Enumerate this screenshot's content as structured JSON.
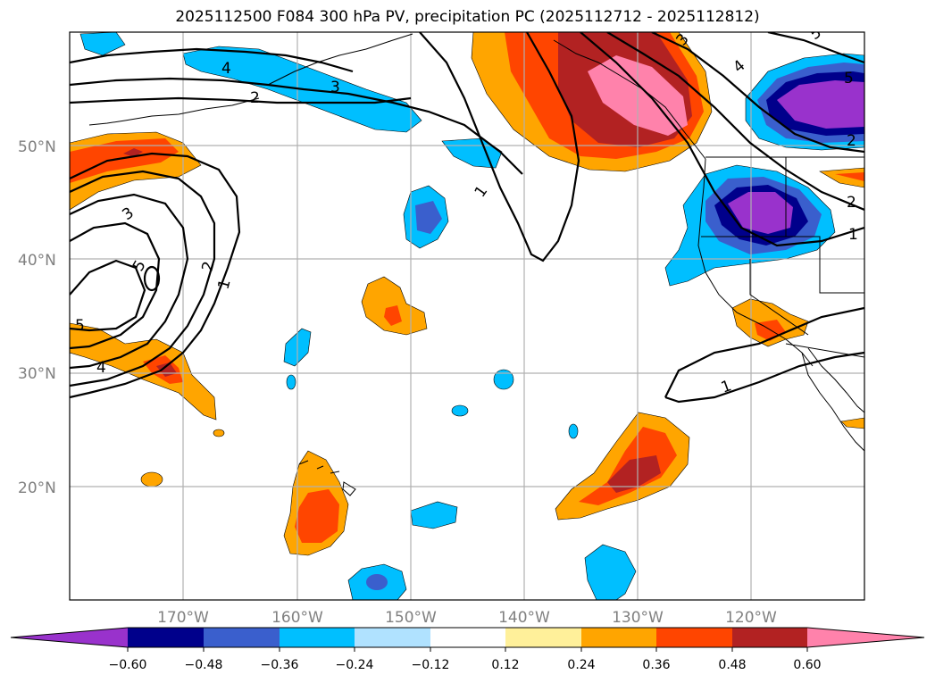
{
  "title": "2025112500 F084 300 hPa PV, precipitation PC (2025112712 - 2025112812)",
  "latitude_labels": [
    "50°N",
    "40°N",
    "30°N",
    "20°N"
  ],
  "longitude_labels": [
    "170°W",
    "160°W",
    "150°W",
    "140°W",
    "130°W",
    "120°W"
  ],
  "colorbar": {
    "tick_labels": [
      "−0.60",
      "−0.48",
      "−0.36",
      "−0.24",
      "−0.12",
      "0.12",
      "0.24",
      "0.36",
      "0.48",
      "0.60"
    ],
    "colors": [
      "#9932cc",
      "#00008b",
      "#3a5fcd",
      "#00bfff",
      "#b0e2ff",
      "#ffffff",
      "#fff09a",
      "#ffa500",
      "#ff4500",
      "#b22222",
      "#ff82ab"
    ]
  },
  "pv_contour_labels": [
    "1",
    "2",
    "3",
    "4",
    "5"
  ],
  "fill_colors": {
    "orange": "#ffa500",
    "red_orange": "#ff4500",
    "dark_red": "#b22222",
    "pink": "#ff82ab",
    "sky_blue": "#00bfff",
    "royal_blue": "#3a5fcd",
    "navy": "#00008b",
    "purple": "#9932cc"
  }
}
